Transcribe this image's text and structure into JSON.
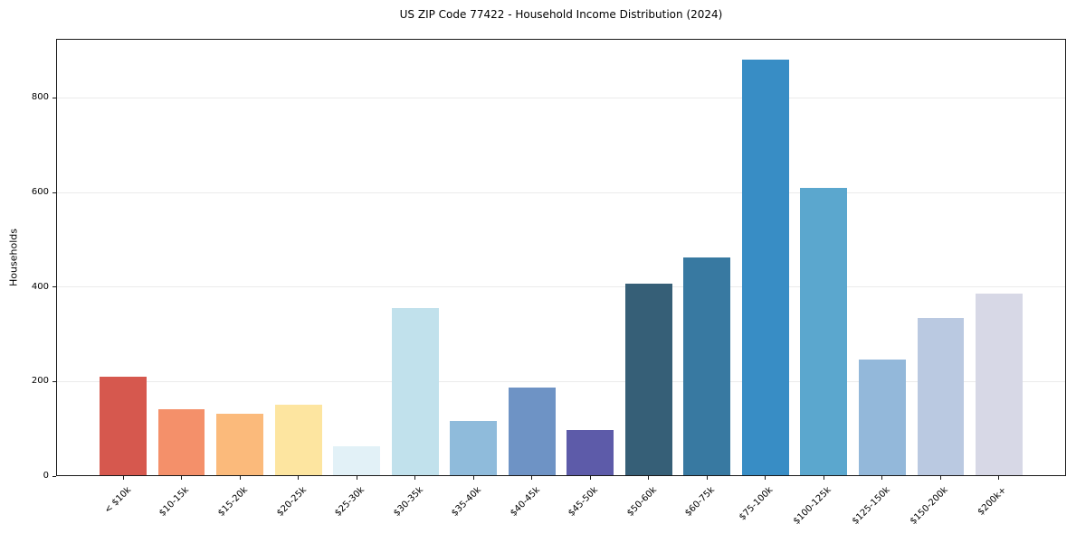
{
  "chart_data": {
    "type": "bar",
    "title": "US ZIP Code 77422 - Household Income Distribution (2024)",
    "xlabel": "",
    "ylabel": "Households",
    "categories": [
      "< $10k",
      "$10-15k",
      "$15-20k",
      "$20-25k",
      "$25-30k",
      "$30-35k",
      "$35-40k",
      "$40-45k",
      "$45-50k",
      "$50-60k",
      "$60-75k",
      "$75-100k",
      "$100-125k",
      "$125-150k",
      "$150-200k",
      "$200k+"
    ],
    "values": [
      211,
      141,
      131,
      151,
      64,
      356,
      117,
      188,
      97,
      407,
      462,
      881,
      609,
      246,
      334,
      386
    ],
    "bar_colors": [
      "#d6584e",
      "#f4906a",
      "#fbba7b",
      "#fde5a0",
      "#e2f1f7",
      "#c1e1ec",
      "#8fbbdb",
      "#6e93c5",
      "#5d5ba9",
      "#365f77",
      "#3879a1",
      "#388dc5",
      "#5ba7ce",
      "#93b8da",
      "#bac9e1",
      "#d7d8e6"
    ],
    "ylim": [
      0,
      925
    ],
    "yticks": [
      0,
      200,
      400,
      600,
      800
    ],
    "grid": "horizontal-only",
    "legend": "none",
    "background_color": "#ffffff",
    "frame_color": "#1a1a1a",
    "gridline_color": "#ebebeb"
  }
}
